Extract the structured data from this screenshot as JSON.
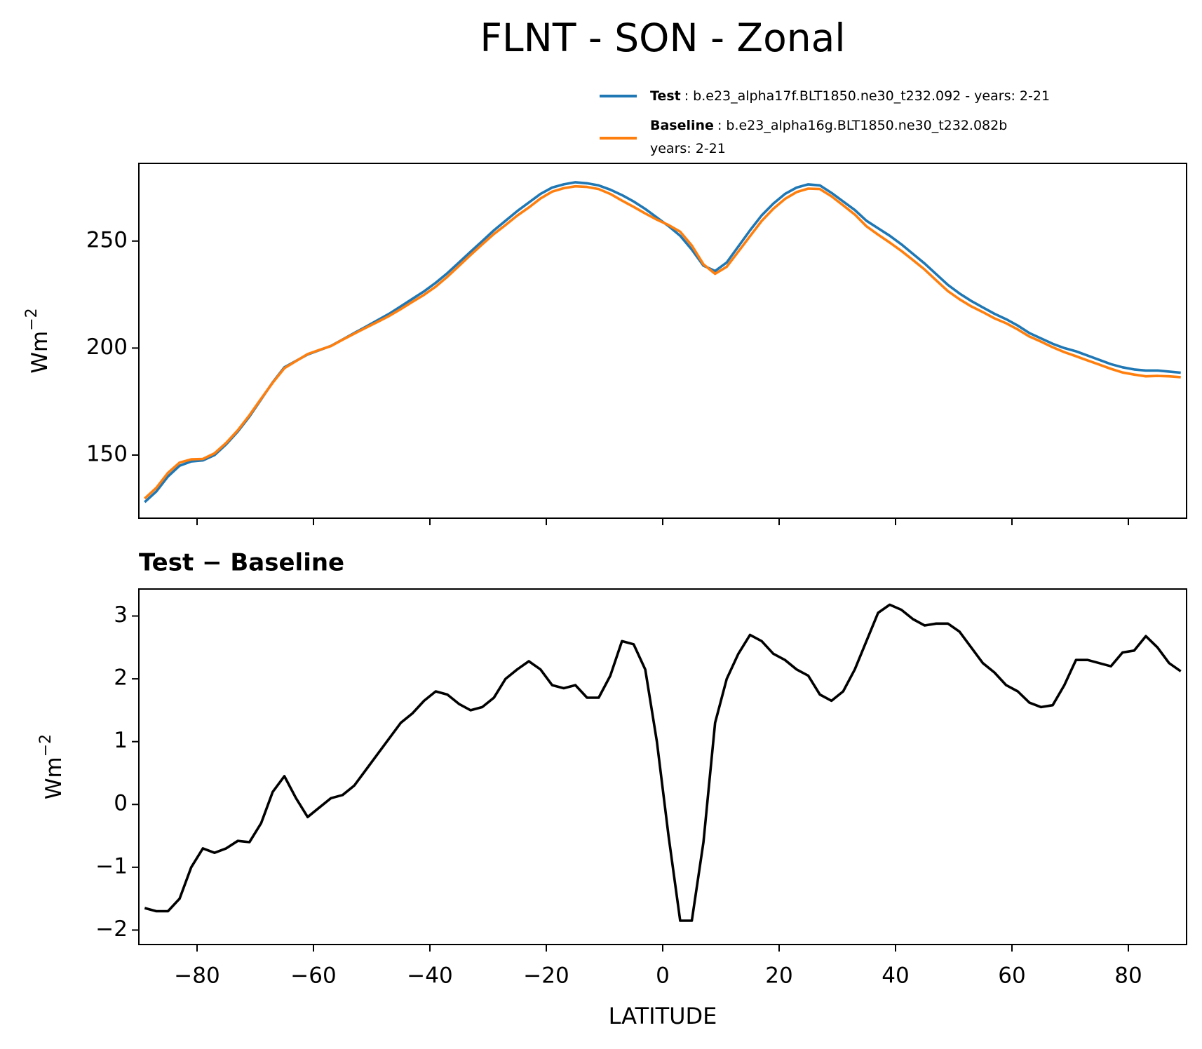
{
  "title": "FLNT - SON - Zonal",
  "chart_data": [
    {
      "type": "line",
      "ylabel": "Wm",
      "ylabel_sup": "−2",
      "xlim": [
        -90,
        90
      ],
      "ylim": [
        120.5,
        286.3
      ],
      "xticks": [
        -80,
        -60,
        -40,
        -20,
        0,
        20,
        40,
        60,
        80
      ],
      "show_xtick_labels": false,
      "yticks": [
        150,
        200,
        250
      ],
      "legend": "upper right",
      "x": [
        -89,
        -87,
        -85,
        -83,
        -81,
        -79,
        -77,
        -75,
        -73,
        -71,
        -69,
        -67,
        -65,
        -63,
        -61,
        -59,
        -57,
        -55,
        -53,
        -51,
        -49,
        -47,
        -45,
        -43,
        -41,
        -39,
        -37,
        -35,
        -33,
        -31,
        -29,
        -27,
        -25,
        -23,
        -21,
        -19,
        -17,
        -15,
        -13,
        -11,
        -9,
        -7,
        -5,
        -3,
        -1,
        1,
        3,
        5,
        7,
        9,
        11,
        13,
        15,
        17,
        19,
        21,
        23,
        25,
        27,
        29,
        31,
        33,
        35,
        37,
        39,
        41,
        43,
        45,
        47,
        49,
        51,
        53,
        55,
        57,
        59,
        61,
        63,
        65,
        67,
        69,
        71,
        73,
        75,
        77,
        79,
        81,
        83,
        85,
        87,
        89
      ],
      "series": [
        {
          "name": "Test",
          "label_lines": [
            ": b.e23_alpha17f.BLT1850.ne30_t232.092 - years: 2-21"
          ],
          "color": "#1f77b4",
          "values": [
            128,
            133,
            140,
            145,
            147,
            147.5,
            150,
            155,
            161,
            168,
            176,
            184,
            191,
            194,
            197,
            199,
            201,
            204,
            207,
            210,
            213,
            216,
            219.5,
            223,
            226.5,
            230.5,
            235,
            240,
            245,
            250,
            255,
            259.5,
            264,
            268,
            272,
            275,
            276.5,
            277.5,
            277,
            276,
            274,
            271.5,
            268.5,
            265,
            261,
            257,
            252.5,
            246,
            238.5,
            236,
            240,
            247.5,
            255,
            262,
            267.5,
            272,
            275,
            276.5,
            276,
            272.5,
            268.5,
            264.5,
            259.5,
            256,
            252.5,
            248.5,
            244,
            239.5,
            234.5,
            229.5,
            225.5,
            222,
            219,
            216,
            213.5,
            210.5,
            207,
            204.5,
            202,
            200,
            198.5,
            196.5,
            194.5,
            192.5,
            191,
            190,
            189.5,
            189.5,
            189,
            188.5
          ]
        },
        {
          "name": "Baseline",
          "label_lines": [
            ": b.e23_alpha16g.BLT1850.ne30_t232.082b",
            "years: 2-21"
          ],
          "color": "#ff7f0e",
          "values": [
            129.7,
            134.7,
            141.7,
            146.5,
            148,
            148.2,
            150.8,
            155.7,
            161.6,
            168.6,
            176.3,
            183.8,
            190.6,
            193.9,
            197.2,
            199.1,
            200.9,
            203.9,
            206.7,
            209.5,
            212.2,
            215,
            218.2,
            221.6,
            224.9,
            228.7,
            233.3,
            238.4,
            243.5,
            248.5,
            253.3,
            257.5,
            261.9,
            265.7,
            269.9,
            273.1,
            274.7,
            275.6,
            275.3,
            274.3,
            272,
            268.9,
            266,
            262.9,
            260,
            257.5,
            254.4,
            247.9,
            239.1,
            234.7,
            238,
            245.1,
            252.3,
            259.4,
            265.1,
            269.7,
            272.9,
            274.5,
            274.3,
            270.9,
            266.7,
            262.4,
            256.9,
            253,
            249.3,
            245.4,
            241.1,
            236.7,
            231.6,
            226.6,
            222.8,
            219.5,
            216.8,
            213.9,
            211.6,
            208.7,
            205.4,
            203,
            200.4,
            198.1,
            196.2,
            194.2,
            192.3,
            190.3,
            188.6,
            187.6,
            186.8,
            187,
            186.8,
            186.4
          ]
        }
      ]
    },
    {
      "type": "line",
      "title": "Test − Baseline",
      "xlabel": "LATITUDE",
      "ylabel": "Wm",
      "ylabel_sup": "−2",
      "xlim": [
        -90,
        90
      ],
      "ylim": [
        -2.23,
        3.43
      ],
      "xticks": [
        {
          "value": -80,
          "label": "−80"
        },
        {
          "value": -60,
          "label": "−60"
        },
        {
          "value": -40,
          "label": "−40"
        },
        {
          "value": -20,
          "label": "−20"
        },
        0,
        20,
        40,
        60,
        80
      ],
      "show_xtick_labels": true,
      "yticks": [
        {
          "value": -2,
          "label": "−2"
        },
        {
          "value": -1,
          "label": "−1"
        },
        0,
        1,
        2,
        3
      ],
      "x": [
        -89,
        -87,
        -85,
        -83,
        -81,
        -79,
        -77,
        -75,
        -73,
        -71,
        -69,
        -67,
        -65,
        -63,
        -61,
        -59,
        -57,
        -55,
        -53,
        -51,
        -49,
        -47,
        -45,
        -43,
        -41,
        -39,
        -37,
        -35,
        -33,
        -31,
        -29,
        -27,
        -25,
        -23,
        -21,
        -19,
        -17,
        -15,
        -13,
        -11,
        -9,
        -7,
        -5,
        -3,
        -1,
        1,
        3,
        5,
        7,
        9,
        11,
        13,
        15,
        17,
        19,
        21,
        23,
        25,
        27,
        29,
        31,
        33,
        35,
        37,
        39,
        41,
        43,
        45,
        47,
        49,
        51,
        53,
        55,
        57,
        59,
        61,
        63,
        65,
        67,
        69,
        71,
        73,
        75,
        77,
        79,
        81,
        83,
        85,
        87,
        89
      ],
      "series": [
        {
          "color": "#000000",
          "values": [
            -1.65,
            -1.7,
            -1.7,
            -1.5,
            -1.0,
            -0.7,
            -0.77,
            -0.7,
            -0.58,
            -0.6,
            -0.3,
            0.2,
            0.45,
            0.1,
            -0.2,
            -0.05,
            0.1,
            0.15,
            0.3,
            0.55,
            0.8,
            1.05,
            1.3,
            1.45,
            1.65,
            1.8,
            1.75,
            1.6,
            1.5,
            1.55,
            1.7,
            2.0,
            2.15,
            2.28,
            2.15,
            1.9,
            1.85,
            1.9,
            1.7,
            1.7,
            2.05,
            2.6,
            2.55,
            2.15,
            1.0,
            -0.5,
            -1.85,
            -1.85,
            -0.6,
            1.3,
            2.0,
            2.4,
            2.7,
            2.6,
            2.4,
            2.3,
            2.15,
            2.05,
            1.75,
            1.65,
            1.8,
            2.15,
            2.6,
            3.05,
            3.18,
            3.1,
            2.95,
            2.85,
            2.88,
            2.88,
            2.75,
            2.5,
            2.25,
            2.1,
            1.9,
            1.8,
            1.62,
            1.55,
            1.58,
            1.9,
            2.3,
            2.3,
            2.25,
            2.2,
            2.42,
            2.45,
            2.68,
            2.5,
            2.25,
            2.12
          ]
        }
      ]
    }
  ]
}
